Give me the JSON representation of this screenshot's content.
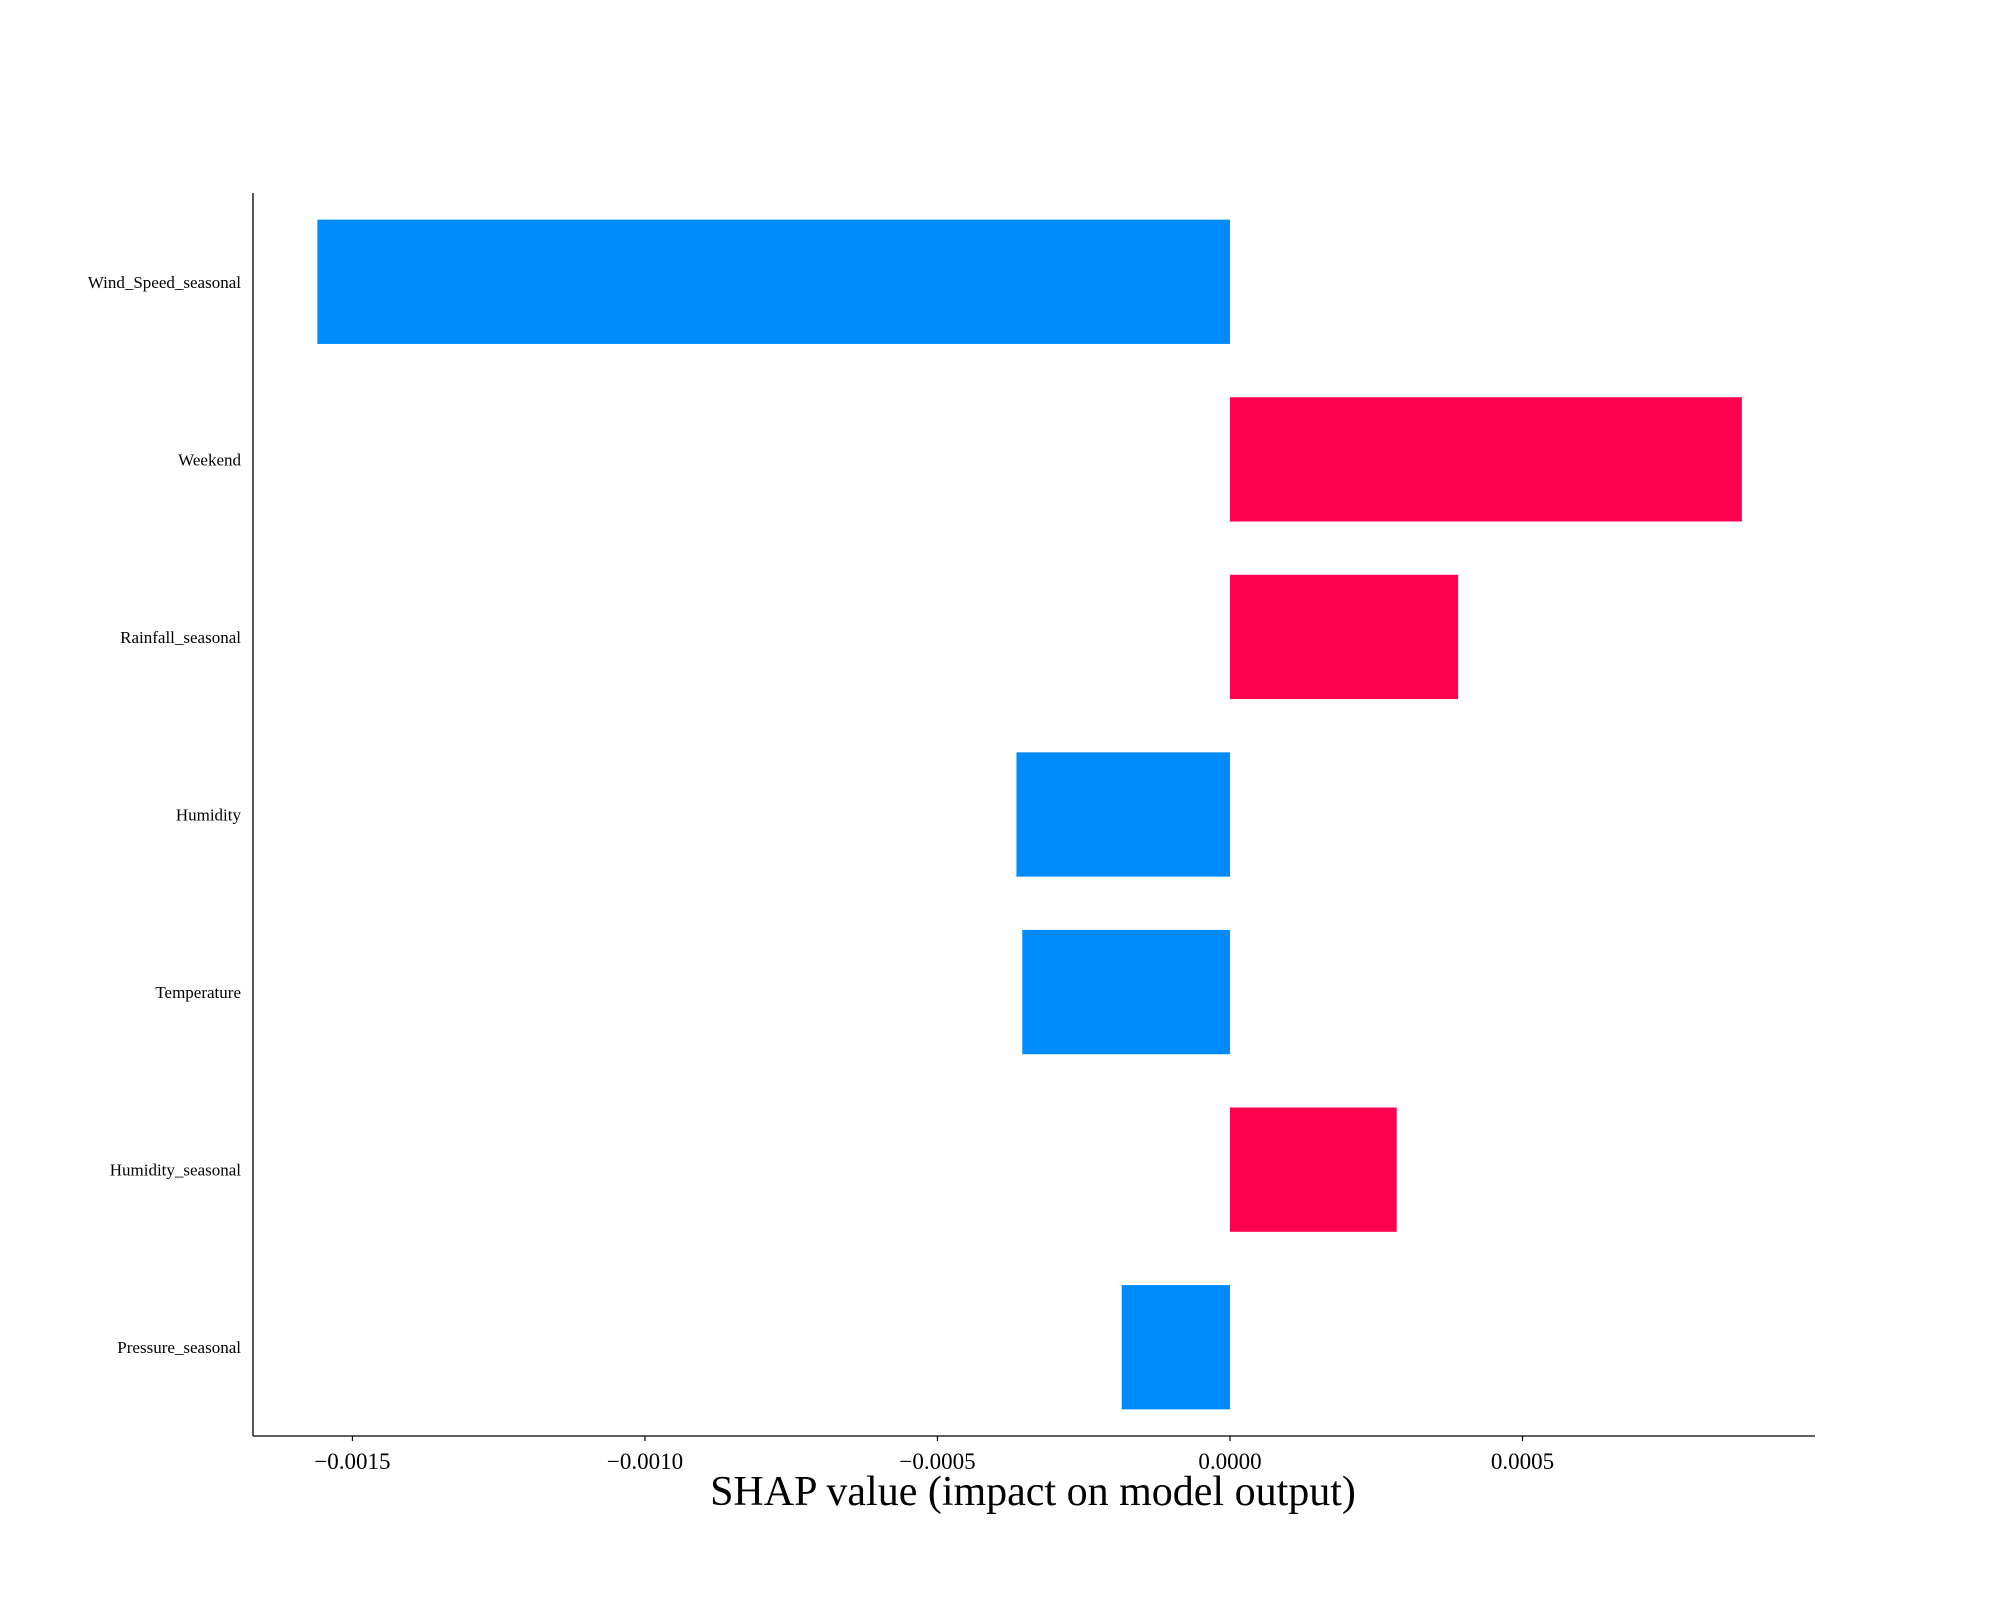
{
  "chart_data": {
    "type": "bar",
    "orientation": "horizontal",
    "categories": [
      "Wind_Speed_seasonal",
      "Weekend",
      "Rainfall_seasonal",
      "Humidity",
      "Temperature",
      "Humidity_seasonal",
      "Pressure_seasonal"
    ],
    "values": [
      -0.00156,
      0.000875,
      0.00039,
      -0.000365,
      -0.000355,
      0.000285,
      -0.000185
    ],
    "xlabel": "SHAP value (impact on model output)",
    "ylabel": "",
    "xlim": [
      -0.00167,
      0.001
    ],
    "xticks": [
      -0.0015,
      -0.001,
      -0.0005,
      0.0,
      0.0005
    ],
    "xtick_labels": [
      "−0.0015",
      "−0.0010",
      "−0.0005",
      "0.0000",
      "0.0005"
    ],
    "colors": {
      "positive": "#ff0051",
      "negative": "#008bfb"
    },
    "grid": false,
    "legend": "none"
  }
}
